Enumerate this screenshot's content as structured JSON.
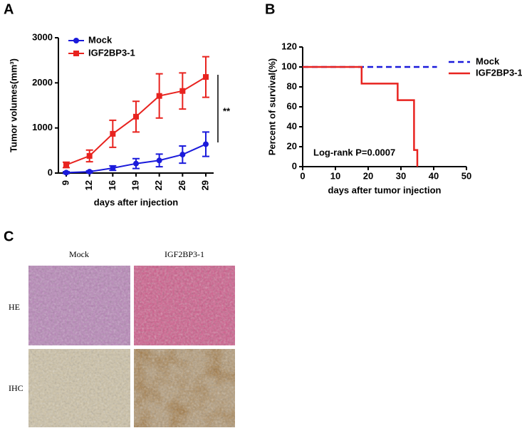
{
  "panel_labels": [
    "A",
    "B",
    "C"
  ],
  "chart_data": [
    {
      "type": "line",
      "xlabel": "days after injection",
      "ylabel": "Tumor volumes(mm³)",
      "categories": [
        "9",
        "12",
        "16",
        "19",
        "22",
        "26",
        "29"
      ],
      "series": [
        {
          "name": "Mock",
          "color": "#1a1adb",
          "marker": "circle",
          "values": [
            10,
            30,
            110,
            210,
            280,
            410,
            640
          ],
          "errors": [
            20,
            20,
            50,
            110,
            140,
            190,
            270
          ]
        },
        {
          "name": "IGF2BP3-1",
          "color": "#e8231f",
          "marker": "square",
          "values": [
            180,
            380,
            870,
            1250,
            1710,
            1820,
            2130
          ],
          "errors": [
            60,
            130,
            300,
            340,
            490,
            400,
            450
          ]
        }
      ],
      "ylim": [
        0,
        3000
      ],
      "yticks": [
        0,
        1000,
        2000,
        3000
      ],
      "annotation": "**",
      "legend": "upper left"
    },
    {
      "type": "step",
      "xlabel": "days after tumor injection",
      "ylabel": "Percent of survival(%)",
      "series": [
        {
          "name": "Mock",
          "color": "#1a1adb",
          "dash": true,
          "x": [
            0,
            41
          ],
          "values": [
            100,
            100
          ]
        },
        {
          "name": "IGF2BP3-1",
          "color": "#e8231f",
          "dash": false,
          "x": [
            0,
            18,
            29,
            34,
            35
          ],
          "values": [
            100,
            83.3,
            66.7,
            16.7,
            0
          ]
        }
      ],
      "xlim": [
        0,
        50
      ],
      "xticks": [
        0,
        10,
        20,
        30,
        40,
        50
      ],
      "ylim": [
        0,
        120
      ],
      "yticks": [
        0,
        20,
        40,
        60,
        80,
        100,
        120
      ],
      "annotation": "Log-rank P=0.0007",
      "legend": "upper right"
    }
  ],
  "histology": {
    "columns": [
      "Mock",
      "IGF2BP3-1"
    ],
    "rows": [
      "HE",
      "IHC"
    ]
  }
}
